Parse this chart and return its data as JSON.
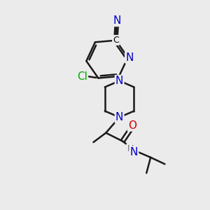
{
  "bg_color": "#ebebeb",
  "bond_color": "#1a1a1a",
  "bond_width": 1.8,
  "atom_colors": {
    "N": "#0000cc",
    "O": "#cc0000",
    "Cl": "#00aa00",
    "H": "#606060"
  },
  "font_size": 10,
  "figsize": [
    3.0,
    3.0
  ],
  "dpi": 100
}
